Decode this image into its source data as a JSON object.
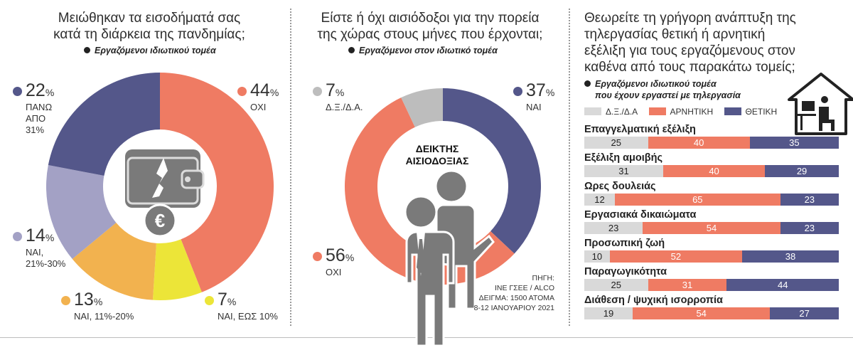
{
  "colors": {
    "blue": "#54578a",
    "salmon": "#ef7b63",
    "lavender": "#a3a1c5",
    "orange": "#f2b24f",
    "yellow": "#ece538",
    "gray": "#bdbdbd",
    "icon_gray": "#7a7a7a"
  },
  "panel1": {
    "title_line1": "Μειώθηκαν τα εισοδήματά σας",
    "title_line2": "κατά τη διάρκεια της πανδημίας;",
    "subtitle": "Εργαζόμενοι ιδιωτικού τομέα",
    "icons": [
      "wallet-icon",
      "euro-coin-icon"
    ],
    "labels": {
      "over31": {
        "value": "22",
        "unit": "%",
        "line1": "ΠΑΝΩ",
        "line2": "ΑΠΟ",
        "line3": "31%"
      },
      "no": {
        "value": "44",
        "unit": "%",
        "line1": "ΟΧΙ"
      },
      "yes21_30": {
        "value": "14",
        "unit": "%",
        "line1": "ΝΑΙ,",
        "line2": "21%-30%"
      },
      "yes11_20": {
        "value": "13",
        "unit": "%",
        "line1": "ΝΑΙ, 11%-20%"
      },
      "upto10": {
        "value": "7",
        "unit": "%",
        "line1": "ΝΑΙ, ΕΩΣ 10%"
      }
    }
  },
  "panel2": {
    "title_line1": "Είστε ή όχι αισιόδοξοι για την πορεία",
    "title_line2": "της χώρας στους μήνες που έρχονται;",
    "subtitle": "Εργαζόμενοι στον ιδιωτικό τομέα",
    "center_line1": "ΔΕΙΚΤΗΣ",
    "center_line2": "ΑΙΣΙΟΔΟΞΙΑΣ",
    "icons": [
      "people-illustration-icon"
    ],
    "labels": {
      "dk": {
        "value": "7",
        "unit": "%",
        "line1": "Δ.Ξ./Δ.Α."
      },
      "yes": {
        "value": "37",
        "unit": "%",
        "line1": "ΝΑΙ"
      },
      "no": {
        "value": "56",
        "unit": "%",
        "line1": "ΟΧΙ"
      }
    },
    "source_line1": "ΠΗΓΗ:",
    "source_line2": "ΙΝΕ ΓΣΕΕ / ALCO",
    "source_line3": "ΔΕΙΓΜΑ: 1500 ΑΤΟΜΑ",
    "source_line4": "8-12 ΙΑΝΟΥΑΡΙΟΥ 2021"
  },
  "panel3": {
    "title": "Θεωρείτε τη γρήγορη ανάπτυξη της τηλεργασίας θετική ή αρνητική εξέλιξη για τους εργαζόμενους στον καθένα από τους παρακάτω τομείς;",
    "subtitle_line1": "Εργαζόμενοι ιδιωτικού τομέα",
    "subtitle_line2": "που έχουν εργαστεί με τηλεργασία",
    "icons": [
      "home-office-icon"
    ],
    "legend": [
      "Δ.Ξ./Δ.Α",
      "ΑΡΝΗΤΙΚΗ",
      "ΘΕΤΙΚΗ"
    ]
  },
  "chart_data": [
    {
      "type": "pie",
      "title": "Μειώθηκαν τα εισοδήματά σας κατά τη διάρκεια της πανδημίας;",
      "subtitle": "Εργαζόμενοι ιδιωτικού τομέα",
      "categories": [
        "ΟΧΙ",
        "ΝΑΙ, ΕΩΣ 10%",
        "ΝΑΙ, 11%-20%",
        "ΝΑΙ, 21%-30%",
        "ΠΑΝΩ ΑΠΟ 31%"
      ],
      "values": [
        44,
        7,
        13,
        14,
        22
      ],
      "colors": [
        "#ef7b63",
        "#ece538",
        "#f2b24f",
        "#a3a1c5",
        "#54578a"
      ]
    },
    {
      "type": "pie",
      "title": "Είστε ή όχι αισιόδοξοι για την πορεία της χώρας στους μήνες που έρχονται;",
      "subtitle": "Εργαζόμενοι στον ιδιωτικό τομέα",
      "categories": [
        "ΝΑΙ",
        "ΟΧΙ",
        "Δ.Ξ./Δ.Α."
      ],
      "values": [
        37,
        56,
        7
      ],
      "colors": [
        "#54578a",
        "#ef7b63",
        "#bdbdbd"
      ]
    },
    {
      "type": "bar",
      "title": "Θεωρείτε τη γρήγορη ανάπτυξη της τηλεργασίας θετική ή αρνητική εξέλιξη για τους εργαζόμενους στον καθένα από τους παρακάτω τομείς;",
      "stacked": true,
      "orientation": "horizontal",
      "categories": [
        "Επαγγελματική εξέλιξη",
        "Εξέλιξη αμοιβής",
        "Ωρες δουλειάς",
        "Εργασιακά δικαιώματα",
        "Προσωπική ζωή",
        "Παραγωγικότητα",
        "Διάθεση / ψυχική ισορροπία"
      ],
      "series": [
        {
          "name": "Δ.Ξ./Δ.Α",
          "color": "#d9d9d9",
          "values": [
            25,
            31,
            12,
            23,
            10,
            25,
            19
          ]
        },
        {
          "name": "ΑΡΝΗΤΙΚΗ",
          "color": "#ef7b63",
          "values": [
            40,
            40,
            65,
            54,
            52,
            31,
            54
          ]
        },
        {
          "name": "ΘΕΤΙΚΗ",
          "color": "#54578a",
          "values": [
            35,
            29,
            23,
            23,
            38,
            44,
            27
          ]
        }
      ],
      "legend_position": "top"
    }
  ]
}
